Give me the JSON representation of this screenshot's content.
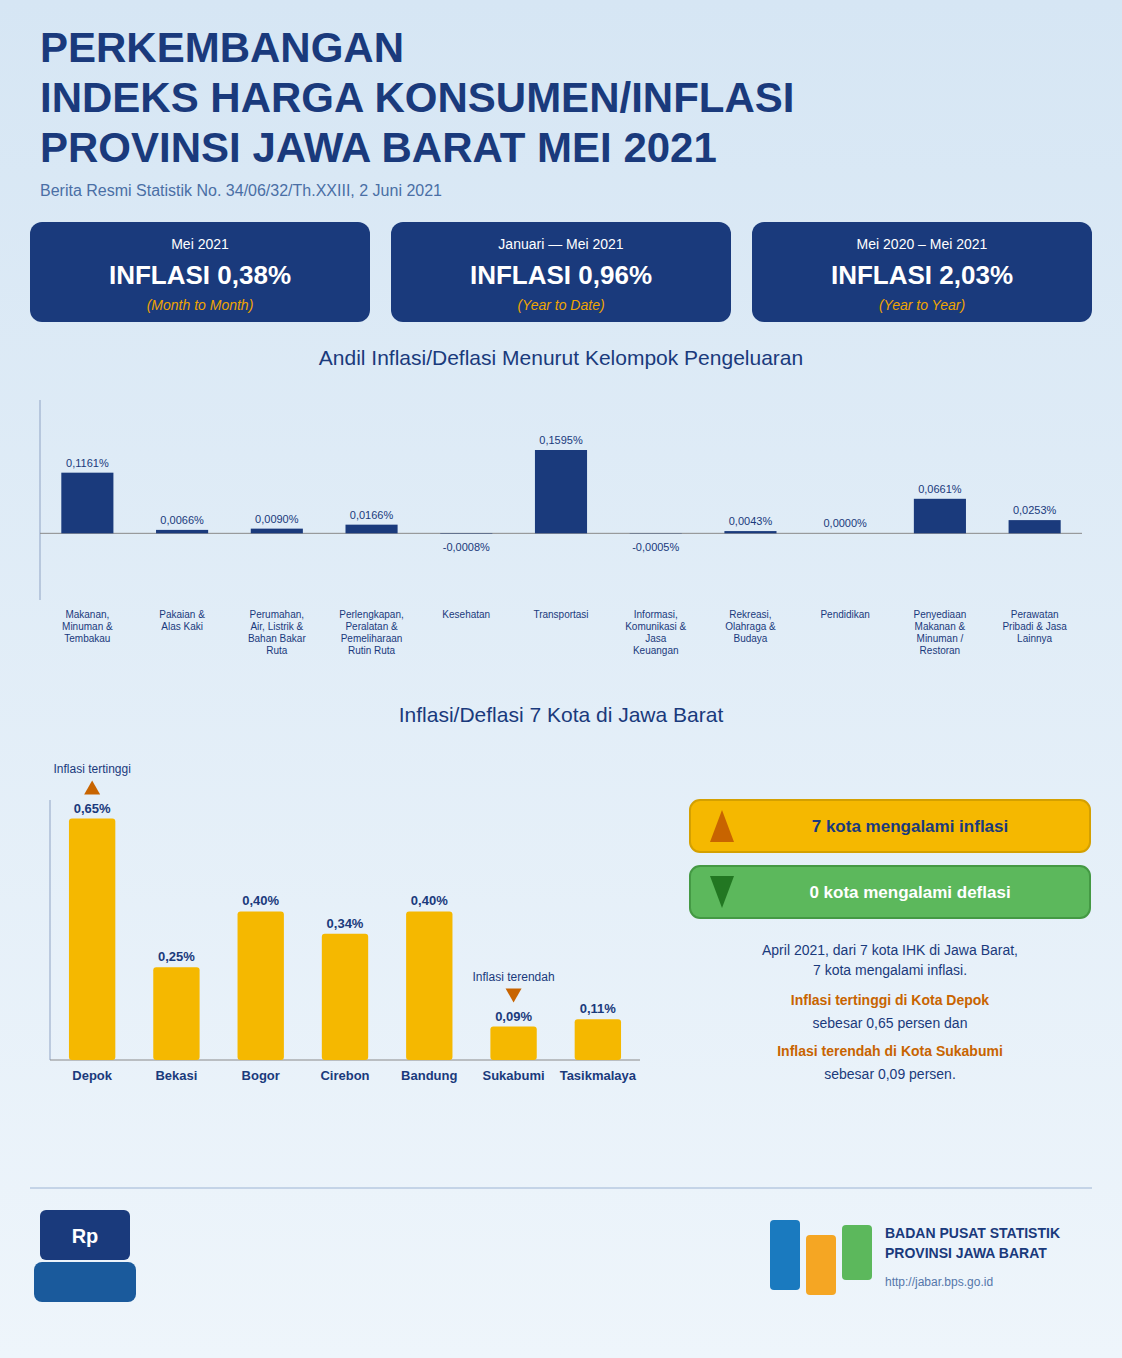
{
  "chart_data": [
    {
      "type": "bar",
      "title": "Andil  Inflasi/Deflasi  Menurut  Kelompok  Pengeluaran",
      "annotations": [
        {
          "text": "PERKEMBANGAN"
        },
        {
          "text": "INDEKS HARGA KONSUMEN/INFLASI"
        },
        {
          "text": "PROVINSI JAWA BARAT MEI 2021"
        },
        {
          "text": "Berita Resmi Statistik No. 34/06/32/Th.XXIII, 2 Juni 2021"
        },
        {
          "text": "Mei 2021"
        },
        {
          "text": "INFLASI  0,38%"
        },
        {
          "text": "(Month to Month)"
        },
        {
          "text": "Januari — Mei 2021"
        },
        {
          "text": "INFLASI  0,96%"
        },
        {
          "text": "(Year to Date)"
        },
        {
          "text": "Mei 2020 – Mei 2021"
        },
        {
          "text": "INFLASI  2,03%"
        },
        {
          "text": "(Year to Year)"
        }
      ],
      "categories": [
        "Makanan,\nMinuman &\nTembakau",
        "Pakaian &\nAlas Kaki",
        "Perumahan,\nAir, Listrik &\nBahan Bakar\nRuta",
        "Perlengkapan,\nPeralatan &\nPemeliharaan\nRutin Ruta",
        "Kesehatan",
        "Transportasi",
        "Informasi,\nKomunikasi &\nJasa\nKeuangan",
        "Rekreasi,\nOlahraga &\nBudaya",
        "Pendidikan",
        "Penyediaan\nMakanan &\nMinuman /\nRestoran",
        "Perawatan\nPribadi & Jasa\nLainnya"
      ],
      "values": [
        0.1161,
        0.0066,
        0.009,
        0.0166,
        -0.0008,
        0.1595,
        -0.0005,
        0.0043,
        0.0,
        0.0661,
        0.0253
      ],
      "value_labels": [
        "0,1161%",
        "0,0066%",
        "0,0090%",
        "0,0166%",
        "-0,0008%",
        "0,1595%",
        "-0,0005%",
        "0,0043%",
        "0,0000%",
        "0,0661%",
        "0,0253%"
      ],
      "color": "#1a3a7c",
      "data_labels": true,
      "tick_labels": "x",
      "ylim": [
        -0.1276,
        0.2552
      ],
      "yticks": [
        0
      ]
    },
    {
      "type": "bar",
      "title": "Inflasi/Deflasi  7  Kota  di  Jawa  Barat",
      "categories": [
        "Depok",
        "Bekasi",
        "Bogor",
        "Cirebon",
        "Bandung",
        "Sukabumi",
        "Tasikmalaya"
      ],
      "values": [
        0.65,
        0.25,
        0.4,
        0.34,
        0.4,
        0.09,
        0.11
      ],
      "value_labels": [
        "0,65%",
        "0,25%",
        "0,40%",
        "0,34%",
        "0,40%",
        "0,09%",
        "0,11%"
      ],
      "color": "#f5b800",
      "data_labels": true,
      "tick_labels": "x",
      "ylim": [
        0,
        0.7
      ],
      "yticks": [
        0
      ],
      "annotations": [
        {
          "text": "Inflasi tertinggi",
          "category": "Depok"
        },
        {
          "text": "Inflasi terendah",
          "category": "Sukabumi"
        },
        {
          "text": "7  kota  mengalami  inflasi"
        },
        {
          "text": "0  kota  mengalami  deflasi"
        },
        {
          "text": "April 2021, dari 7 kota IHK di Jawa Barat,\n7 kota mengalami inflasi."
        },
        {
          "text": "Inflasi tertinggi di Kota Depok"
        },
        {
          "text": "sebesar 0,65 persen dan"
        },
        {
          "text": "Inflasi terendah di Kota Sukabumi"
        },
        {
          "text": "sebesar 0,09 persen."
        },
        {
          "text": "Rp"
        },
        {
          "text": "BADAN PUSAT STATISTIK\nPROVINSI JAWA BARAT"
        },
        {
          "text": "http://jabar.bps.go.id"
        }
      ]
    }
  ]
}
